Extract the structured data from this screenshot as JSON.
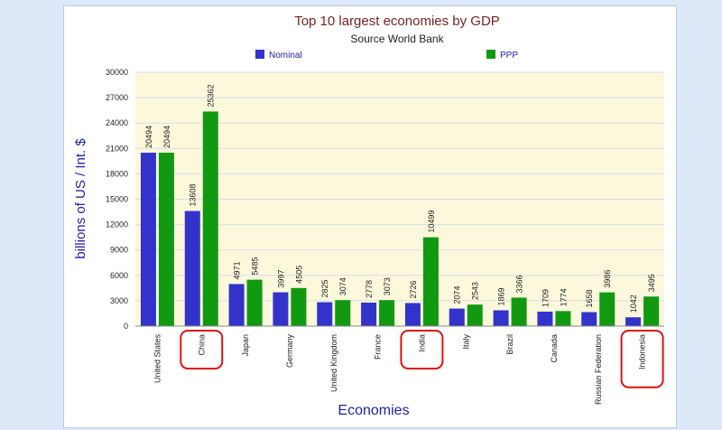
{
  "chart_data": {
    "type": "bar",
    "title": "Top 10 largest economies by GDP",
    "subtitle": "Source World Bank",
    "xlabel": "Economies",
    "ylabel": "billions of US / Int. $",
    "ylim": [
      0,
      30000
    ],
    "yticks": [
      0,
      3000,
      6000,
      9000,
      12000,
      15000,
      18000,
      21000,
      24000,
      27000,
      30000
    ],
    "grid": true,
    "legend_position": "top",
    "categories": [
      "United States",
      "China",
      "Japan",
      "Germany",
      "United Kingdom",
      "France",
      "India",
      "Italy",
      "Brazil",
      "Canada",
      "Russian Federation",
      "Indonesia"
    ],
    "series": [
      {
        "name": "Nominal",
        "color": "#3333cc",
        "values": [
          20494,
          13608,
          4971,
          3997,
          2825,
          2778,
          2726,
          2074,
          1869,
          1709,
          1658,
          1042
        ]
      },
      {
        "name": "PPP",
        "color": "#119911",
        "values": [
          20494,
          25362,
          5485,
          4505,
          3074,
          3073,
          10499,
          2543,
          3366,
          1774,
          3986,
          3495
        ]
      }
    ],
    "highlighted_categories": [
      "China",
      "India",
      "Indonesia"
    ],
    "colors": {
      "plot_background": "#fcf8dc",
      "title": "#7a2222",
      "axis_title": "#2222aa",
      "highlight": "#dd1111",
      "grid": "#d7dfe8"
    }
  }
}
